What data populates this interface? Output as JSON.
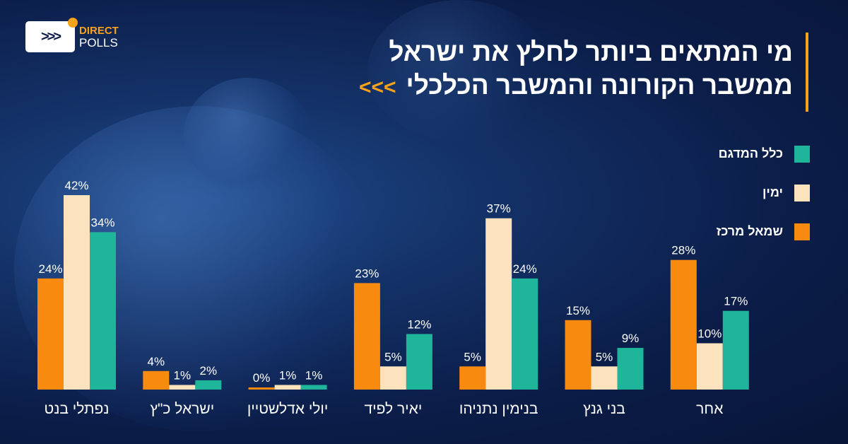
{
  "logo": {
    "line1": "DIRECT",
    "line2": "POLLS",
    "icon_text": ">>>"
  },
  "title": {
    "line1": "מי המתאים ביותר לחלץ את ישראל",
    "line2": "ממשבר הקורונה והמשבר הכלכלי",
    "arrows": "<<<"
  },
  "colors": {
    "left_center": "#f98a10",
    "right": "#fde3bd",
    "total": "#1fb59a",
    "accent": "#f7a21b"
  },
  "chart_data": {
    "type": "bar",
    "title": "מי המתאים ביותר לחלץ את ישראל ממשבר הקורונה והמשבר הכלכלי",
    "categories": [
      "נפתלי בנט",
      "ישראל כ\"ץ",
      "יולי אדלשטיין",
      "יאיר לפיד",
      "בנימין נתניהו",
      "בני גנץ",
      "אחר"
    ],
    "series": [
      {
        "name": "שמאל מרכז",
        "color": "#f98a10",
        "values": [
          24,
          4,
          0,
          23,
          5,
          15,
          28
        ]
      },
      {
        "name": "ימין",
        "color": "#fde3bd",
        "values": [
          42,
          1,
          1,
          5,
          37,
          5,
          10
        ]
      },
      {
        "name": "כלל המדגם",
        "color": "#1fb59a",
        "values": [
          34,
          2,
          1,
          12,
          24,
          9,
          17
        ]
      }
    ],
    "unit": "%",
    "legend_order": [
      "כלל המדגם",
      "ימין",
      "שמאל מרכז"
    ],
    "legend_position": "right",
    "grid": false,
    "ylim": [
      0,
      42
    ]
  }
}
